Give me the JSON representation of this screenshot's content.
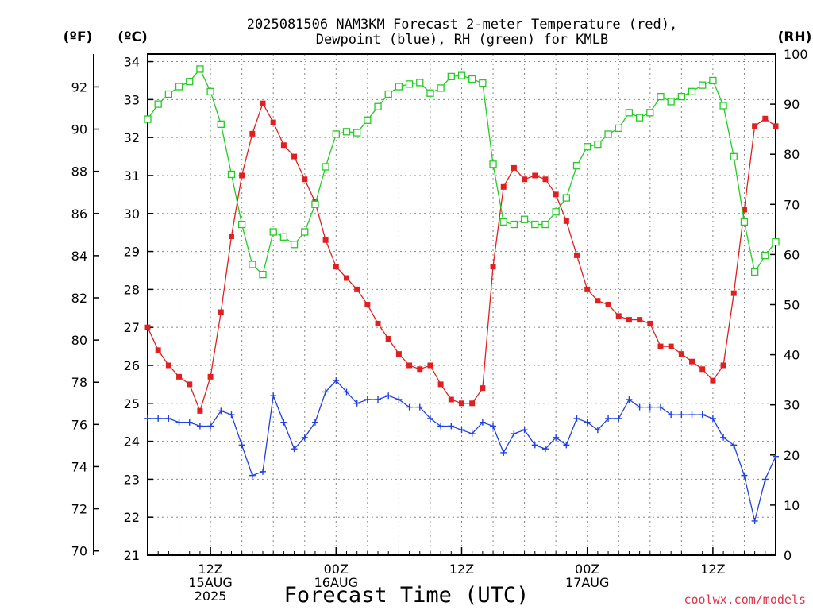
{
  "chart_data": {
    "type": "line",
    "title": "2025081506 NAM3KM Forecast 2-meter Temperature (red),",
    "subtitle": "Dewpoint (blue), RH (green) for KMLB",
    "xlabel": "Forecast Time (UTC)",
    "ylabel_left_f": "(ºF)",
    "ylabel_left_c": "(ºC)",
    "ylabel_right": "(RH)",
    "ylim_c": [
      21,
      34.2
    ],
    "ylim_f": [
      69.8,
      93.6
    ],
    "ylim_rh": [
      0,
      100
    ],
    "yticks_c": [
      21,
      22,
      23,
      24,
      25,
      26,
      27,
      28,
      29,
      30,
      31,
      32,
      33,
      34
    ],
    "yticks_f": [
      70,
      72,
      74,
      76,
      78,
      80,
      82,
      84,
      86,
      88,
      90,
      92
    ],
    "yticks_rh": [
      0,
      10,
      20,
      30,
      40,
      50,
      60,
      70,
      80,
      90,
      100
    ],
    "xlim_hours": [
      6,
      66
    ],
    "grid": true,
    "xticks": [
      {
        "hour": 12,
        "line1": "12Z",
        "line2": "15AUG",
        "line3": "2025"
      },
      {
        "hour": 24,
        "line1": "00Z",
        "line2": "16AUG",
        "line3": ""
      },
      {
        "hour": 36,
        "line1": "12Z",
        "line2": "",
        "line3": ""
      },
      {
        "hour": 48,
        "line1": "00Z",
        "line2": "17AUG",
        "line3": ""
      },
      {
        "hour": 60,
        "line1": "12Z",
        "line2": "",
        "line3": ""
      }
    ],
    "x_hours": [
      6,
      7,
      8,
      9,
      10,
      11,
      12,
      13,
      14,
      15,
      16,
      17,
      18,
      19,
      20,
      21,
      22,
      23,
      24,
      25,
      26,
      27,
      28,
      29,
      30,
      31,
      32,
      33,
      34,
      35,
      36,
      37,
      38,
      39,
      40,
      41,
      42,
      43,
      44,
      45,
      46,
      47,
      48,
      49,
      50,
      51,
      52,
      53,
      54,
      55,
      56,
      57,
      58,
      59,
      60,
      61,
      62,
      63,
      64,
      65,
      66
    ],
    "series": [
      {
        "name": "Temperature",
        "unit": "C",
        "color": "#e02020",
        "marker": "filled-square",
        "values": [
          27.0,
          26.4,
          26.0,
          25.7,
          25.5,
          24.8,
          25.7,
          27.4,
          29.4,
          31.0,
          32.1,
          32.9,
          32.4,
          31.8,
          31.5,
          30.9,
          30.3,
          29.3,
          28.6,
          28.3,
          28.0,
          27.6,
          27.1,
          26.7,
          26.3,
          26.0,
          25.9,
          26.0,
          25.5,
          25.1,
          25.0,
          25.0,
          25.4,
          28.6,
          30.7,
          31.2,
          30.9,
          31.0,
          30.9,
          30.5,
          29.8,
          28.9,
          28.0,
          27.7,
          27.6,
          27.3,
          27.2,
          27.2,
          27.1,
          26.5,
          26.5,
          26.3,
          26.1,
          25.9,
          25.6,
          26.0,
          27.9,
          30.1,
          32.3,
          32.5,
          32.3
        ]
      },
      {
        "name": "Dewpoint",
        "unit": "C",
        "color": "#2040e0",
        "marker": "plus",
        "values": [
          24.6,
          24.6,
          24.6,
          24.5,
          24.5,
          24.4,
          24.4,
          24.8,
          24.7,
          23.9,
          23.1,
          23.2,
          25.2,
          24.5,
          23.8,
          24.1,
          24.5,
          25.3,
          25.6,
          25.3,
          25.0,
          25.1,
          25.1,
          25.2,
          25.1,
          24.9,
          24.9,
          24.6,
          24.4,
          24.4,
          24.3,
          24.2,
          24.5,
          24.4,
          23.7,
          24.2,
          24.3,
          23.9,
          23.8,
          24.1,
          23.9,
          24.6,
          24.5,
          24.3,
          24.6,
          24.6,
          25.1,
          24.9,
          24.9,
          24.9,
          24.7,
          24.7,
          24.7,
          24.7,
          24.6,
          24.1,
          23.9,
          23.1,
          21.9,
          23.0,
          23.6
        ]
      },
      {
        "name": "RH",
        "unit": "%",
        "color": "#22cc22",
        "marker": "open-square",
        "values": [
          87,
          90,
          92,
          93.5,
          94.5,
          97,
          92.5,
          86,
          76,
          66,
          58,
          56,
          64.5,
          63.5,
          62,
          64.5,
          70,
          77.5,
          84,
          84.5,
          84.3,
          86.8,
          89.5,
          92,
          93.5,
          94,
          94.3,
          92.2,
          93.2,
          95.5,
          95.7,
          95,
          94.2,
          78,
          66.5,
          66,
          67,
          66,
          66,
          68.5,
          71.3,
          77.7,
          81.5,
          82,
          84,
          85.2,
          88.3,
          87.3,
          88.3,
          91.5,
          90.5,
          91.5,
          92.5,
          93.8,
          94.7,
          89.7,
          79.5,
          66.5,
          56.5,
          59.8,
          62.5
        ]
      }
    ]
  },
  "watermark": "coolwx.com/models"
}
